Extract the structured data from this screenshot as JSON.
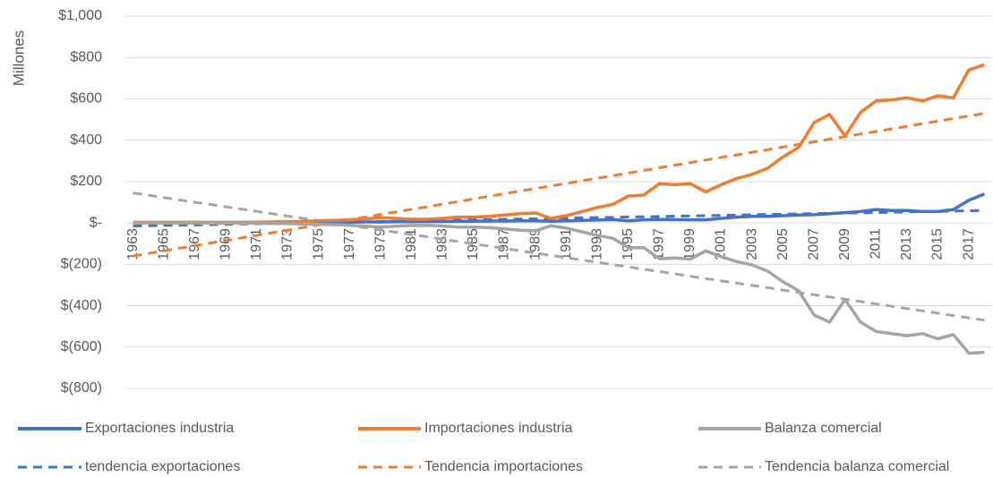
{
  "chart_data": {
    "type": "line",
    "y_label": "Millones",
    "categories": [
      "1963",
      null,
      "1965",
      null,
      "1967",
      null,
      "1969",
      null,
      "1971",
      null,
      "1973",
      null,
      "1975",
      null,
      "1977",
      null,
      "1979",
      null,
      "1981",
      null,
      "1983",
      null,
      "1985",
      null,
      "1987",
      null,
      "1989",
      null,
      "1991",
      null,
      "1993",
      null,
      "1995",
      null,
      "1997",
      null,
      "1999",
      null,
      "2001",
      null,
      "2003",
      null,
      "2005",
      null,
      "2007",
      null,
      "2009",
      null,
      "2011",
      null,
      "2013",
      null,
      "2015",
      null,
      "2017",
      null
    ],
    "ylim": [
      -800,
      1000
    ],
    "yticks": [
      {
        "value": -800,
        "label": "$(800)"
      },
      {
        "value": -600,
        "label": "$(600)"
      },
      {
        "value": -400,
        "label": "$(400)"
      },
      {
        "value": -200,
        "label": "$(200)"
      },
      {
        "value": 0,
        "label": "$-"
      },
      {
        "value": 200,
        "label": "$200"
      },
      {
        "value": 400,
        "label": "$400"
      },
      {
        "value": 600,
        "label": "$600"
      },
      {
        "value": 800,
        "label": "$800"
      },
      {
        "value": 1000,
        "label": "$1,000"
      }
    ],
    "grid": true,
    "legend": "bottom",
    "series": [
      {
        "name": "Exportaciones industria",
        "color": "#4472c4",
        "dash": "solid",
        "values": [
          2,
          2,
          2,
          2,
          2,
          2,
          2,
          2,
          3,
          3,
          3,
          3,
          3,
          4,
          4,
          5,
          5,
          6,
          6,
          7,
          7,
          8,
          8,
          9,
          9,
          10,
          10,
          8,
          10,
          12,
          14,
          16,
          10,
          15,
          17,
          16,
          15,
          15,
          22,
          28,
          32,
          32,
          35,
          38,
          40,
          45,
          50,
          55,
          65,
          60,
          60,
          55,
          55,
          65,
          110,
          140
        ]
      },
      {
        "name": "Importaciones industria",
        "color": "#ed7d31",
        "dash": "solid",
        "values": [
          3,
          3,
          3,
          3,
          3,
          3,
          3,
          3,
          4,
          5,
          6,
          8,
          10,
          12,
          15,
          20,
          25,
          22,
          18,
          18,
          22,
          28,
          28,
          32,
          38,
          45,
          48,
          22,
          35,
          55,
          75,
          90,
          130,
          135,
          190,
          185,
          190,
          150,
          185,
          215,
          235,
          265,
          320,
          365,
          485,
          525,
          420,
          535,
          590,
          595,
          605,
          590,
          615,
          605,
          740,
          765
        ]
      },
      {
        "name": "Balanza comercial",
        "color": "#a5a5a5",
        "dash": "solid",
        "values": [
          -1,
          -1,
          -1,
          -1,
          -1,
          -1,
          -1,
          -1,
          -1,
          -2,
          -3,
          -5,
          -7,
          -8,
          -11,
          -15,
          -20,
          -16,
          -12,
          -11,
          -15,
          -20,
          -20,
          -23,
          -29,
          -35,
          -38,
          -14,
          -25,
          -43,
          -61,
          -74,
          -120,
          -120,
          -173,
          -169,
          -175,
          -135,
          -163,
          -187,
          -203,
          -233,
          -285,
          -327,
          -445,
          -480,
          -370,
          -480,
          -525,
          -535,
          -545,
          -535,
          -560,
          -540,
          -630,
          -625
        ]
      },
      {
        "name": "tendencia exportaciones",
        "color": "#4472c4",
        "dash": "dashed",
        "values": [
          -15,
          -14,
          -12,
          -11,
          -10,
          -8,
          -7,
          -5,
          -4,
          -3,
          -1,
          0,
          1,
          3,
          4,
          5,
          7,
          8,
          10,
          11,
          12,
          14,
          15,
          16,
          18,
          19,
          20,
          22,
          23,
          25,
          26,
          27,
          29,
          30,
          31,
          33,
          34,
          35,
          37,
          38,
          40,
          41,
          42,
          44,
          45,
          46,
          48,
          49,
          50,
          52,
          53,
          55,
          56,
          57,
          59,
          60
        ]
      },
      {
        "name": "Tendencia importaciones",
        "color": "#ed7d31",
        "dash": "dashed",
        "values": [
          -160,
          -147,
          -135,
          -122,
          -110,
          -97,
          -85,
          -72,
          -60,
          -47,
          -35,
          -22,
          -9,
          3,
          16,
          28,
          41,
          53,
          66,
          78,
          91,
          103,
          116,
          129,
          141,
          154,
          166,
          179,
          191,
          204,
          216,
          229,
          241,
          254,
          267,
          279,
          292,
          304,
          317,
          329,
          342,
          354,
          367,
          379,
          392,
          405,
          417,
          430,
          442,
          455,
          467,
          480,
          492,
          505,
          517,
          530
        ]
      },
      {
        "name": "Tendencia balanza comercial",
        "color": "#a5a5a5",
        "dash": "dashed",
        "values": [
          145,
          134,
          123,
          111,
          100,
          89,
          78,
          67,
          56,
          44,
          33,
          22,
          11,
          0,
          -11,
          -23,
          -34,
          -45,
          -56,
          -67,
          -79,
          -90,
          -101,
          -112,
          -123,
          -135,
          -146,
          -157,
          -168,
          -179,
          -190,
          -202,
          -213,
          -224,
          -235,
          -246,
          -258,
          -269,
          -280,
          -291,
          -302,
          -313,
          -325,
          -336,
          -347,
          -358,
          -369,
          -380,
          -392,
          -403,
          -414,
          -425,
          -436,
          -448,
          -459,
          -470
        ]
      }
    ]
  }
}
